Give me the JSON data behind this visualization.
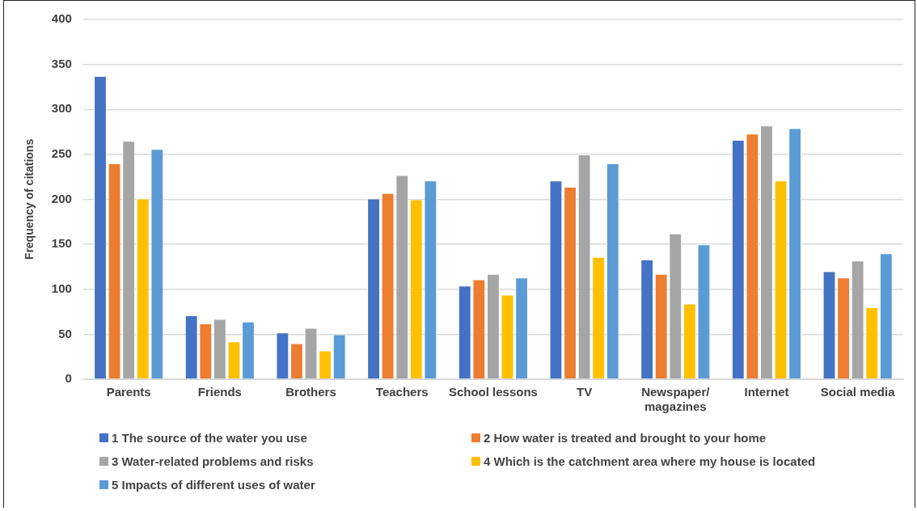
{
  "chart_data": {
    "type": "bar",
    "ylabel": "Frequency of citations",
    "categories": [
      "Parents",
      "Friends",
      "Brothers",
      "Teachers",
      "School lessons",
      "TV",
      "Newspaper/ magazines",
      "Internet",
      "Social media"
    ],
    "series": [
      {
        "name": "1 The source of the water you use",
        "color": "#4472c4",
        "values": [
          337,
          71,
          52,
          201,
          104,
          221,
          133,
          266,
          120
        ]
      },
      {
        "name": "2 How water is treated and brought to your home",
        "color": "#ed7d31",
        "values": [
          240,
          62,
          40,
          207,
          111,
          214,
          117,
          273,
          113
        ]
      },
      {
        "name": "3 Water-related problems and risks",
        "color": "#a5a5a5",
        "values": [
          265,
          67,
          57,
          227,
          117,
          250,
          162,
          282,
          132
        ]
      },
      {
        "name": "4 Which is the catchment area where my house is located",
        "color": "#ffc000",
        "values": [
          201,
          42,
          32,
          200,
          94,
          136,
          84,
          221,
          80
        ]
      },
      {
        "name": "5 Impacts of different uses of water",
        "color": "#5b9bd5",
        "values": [
          256,
          64,
          50,
          221,
          113,
          240,
          150,
          279,
          140
        ]
      }
    ],
    "ylim": [
      0,
      400
    ],
    "yticks": [
      0,
      50,
      100,
      150,
      200,
      250,
      300,
      350,
      400
    ],
    "grid": "y",
    "legend": "bottom"
  }
}
